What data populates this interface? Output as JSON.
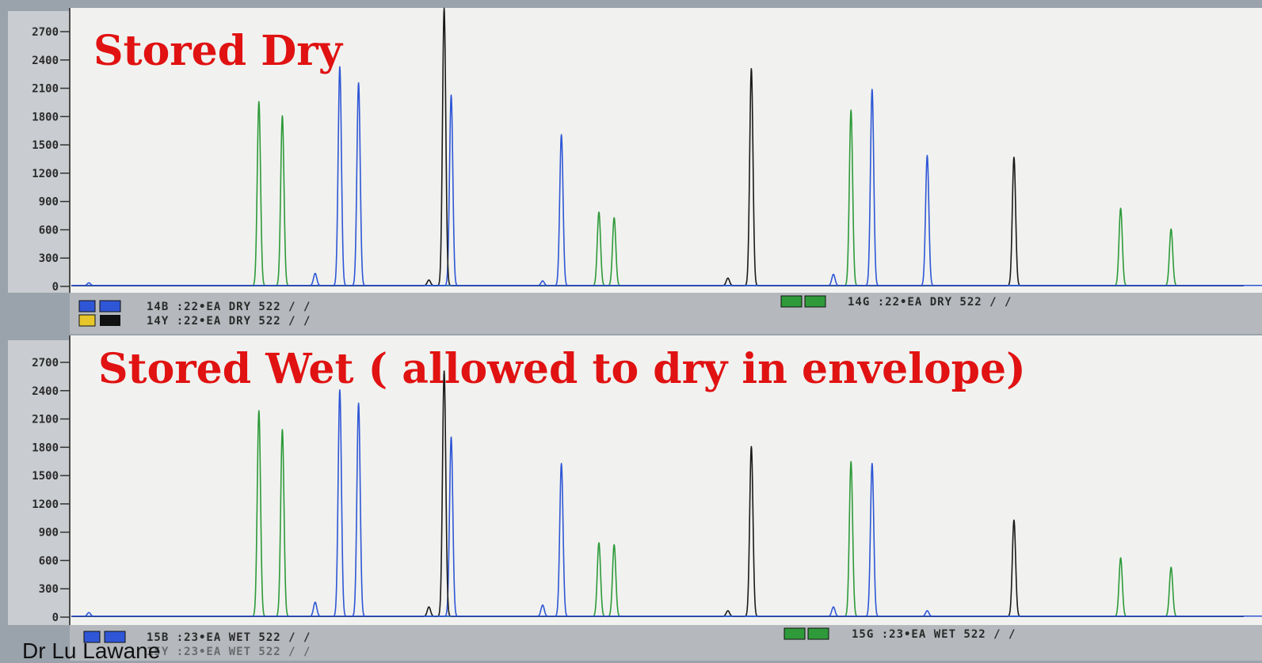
{
  "footer": {
    "text": "Dr Lu Lawane"
  },
  "chart_data": [
    {
      "type": "line",
      "title": "Stored Dry",
      "xlabel": "",
      "ylabel": "",
      "ylim": [
        0,
        2800
      ],
      "yticks": [
        0,
        300,
        600,
        900,
        1200,
        1500,
        1800,
        2100,
        2400,
        2700
      ],
      "x_range": [
        0,
        1000
      ],
      "status_left": [
        "14B :22•EA DRY 522 / /",
        "14Y :22•EA DRY 522 / /"
      ],
      "status_right": "14G :22•EA DRY 522 / /",
      "colors": {
        "blue": "#2f56d6",
        "green": "#2e9a3a",
        "black": "#1a1a1a",
        "light_green": "#8bc470"
      },
      "series": [
        {
          "color": "green",
          "peaks": [
            [
              160,
              1950
            ],
            [
              180,
              1800
            ],
            [
              450,
              780
            ],
            [
              463,
              720
            ],
            [
              665,
              1860
            ],
            [
              895,
              820
            ],
            [
              938,
              600
            ]
          ]
        },
        {
          "color": "blue",
          "peaks": [
            [
              15,
              30
            ],
            [
              208,
              130
            ],
            [
              229,
              2320
            ],
            [
              245,
              2150
            ],
            [
              324,
              2020
            ],
            [
              418,
              1600
            ],
            [
              402,
              50
            ],
            [
              650,
              120
            ],
            [
              683,
              2080
            ],
            [
              730,
              1380
            ]
          ]
        },
        {
          "color": "black",
          "peaks": [
            [
              305,
              60
            ],
            [
              318,
              2940
            ],
            [
              560,
              80
            ],
            [
              580,
              2300
            ],
            [
              804,
              1360
            ]
          ]
        }
      ]
    },
    {
      "type": "line",
      "title": "Stored Wet ( allowed to dry in envelope)",
      "xlabel": "",
      "ylabel": "",
      "ylim": [
        0,
        2800
      ],
      "yticks": [
        0,
        300,
        600,
        900,
        1200,
        1500,
        1800,
        2100,
        2400,
        2700
      ],
      "x_range": [
        0,
        1000
      ],
      "status_left": [
        "15B :23•EA WET 522 / /",
        "15Y :23•EA WET 522 / /"
      ],
      "status_right": "15G :23•EA WET 522 / /",
      "colors": {
        "blue": "#2f56d6",
        "green": "#2e9a3a",
        "black": "#1a1a1a",
        "light_green": "#8bc470"
      },
      "series": [
        {
          "color": "green",
          "peaks": [
            [
              160,
              2180
            ],
            [
              180,
              1980
            ],
            [
              450,
              780
            ],
            [
              463,
              760
            ],
            [
              665,
              1640
            ],
            [
              895,
              620
            ],
            [
              938,
              520
            ]
          ]
        },
        {
          "color": "blue",
          "peaks": [
            [
              15,
              40
            ],
            [
              208,
              150
            ],
            [
              229,
              2400
            ],
            [
              245,
              2260
            ],
            [
              324,
              1900
            ],
            [
              418,
              1620
            ],
            [
              402,
              120
            ],
            [
              650,
              100
            ],
            [
              683,
              1620
            ],
            [
              730,
              60
            ]
          ]
        },
        {
          "color": "black",
          "peaks": [
            [
              305,
              100
            ],
            [
              318,
              2600
            ],
            [
              560,
              60
            ],
            [
              580,
              1800
            ],
            [
              804,
              1020
            ]
          ]
        }
      ]
    }
  ]
}
